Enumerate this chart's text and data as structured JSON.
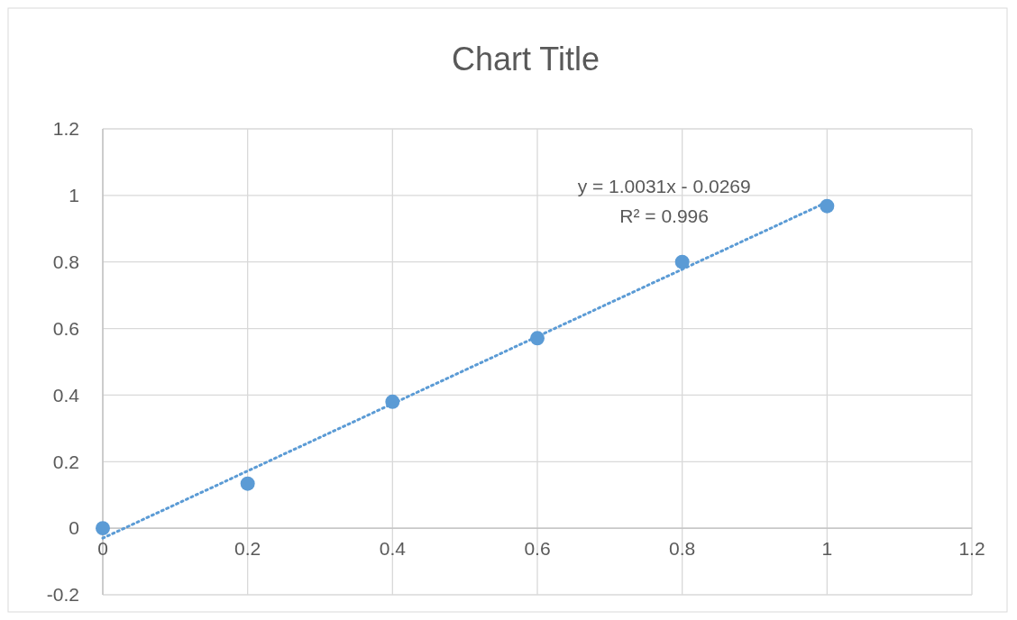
{
  "chart_data": {
    "type": "scatter",
    "title": "Chart Title",
    "xlim": [
      0,
      1.2
    ],
    "xticks": [
      0,
      0.2,
      0.4,
      0.6,
      0.8,
      1,
      1.2
    ],
    "ylim": [
      -0.2,
      1.2
    ],
    "yticks": [
      -0.2,
      0,
      0.2,
      0.4,
      0.6,
      0.8,
      1,
      1.2
    ],
    "grid": true,
    "series": [
      {
        "color": "#5b9bd5",
        "marker": "circle",
        "x": [
          0,
          0.2,
          0.4,
          0.6,
          0.8,
          1
        ],
        "values": [
          0,
          0.134,
          0.38,
          0.571,
          0.8,
          0.968
        ]
      },
      {
        "type": "line",
        "color": "#5b9bd5",
        "x": [
          0,
          1
        ],
        "values": [
          -0.03,
          0.98
        ],
        "line_style": "dotted",
        "marker": "none"
      }
    ],
    "annotations": [
      "y = 1.0031x - 0.0269",
      "R² = 0.996"
    ]
  }
}
